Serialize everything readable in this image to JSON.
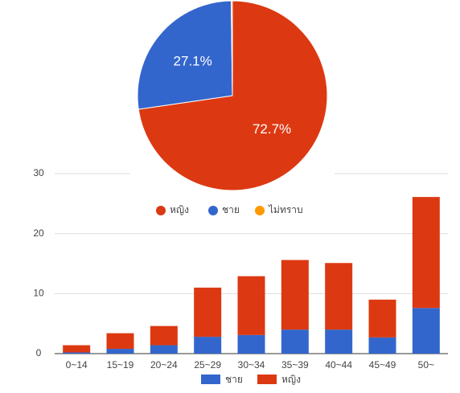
{
  "chart_data": [
    {
      "type": "pie",
      "series": [
        {
          "name": "หญิง",
          "color": "#dc3912",
          "values": [
            72.7
          ],
          "value_labels": [
            "72.7%"
          ]
        },
        {
          "name": "ชาย",
          "color": "#3366cc",
          "values": [
            27.1
          ],
          "value_labels": [
            "27.1%"
          ]
        },
        {
          "name": "ไม่ทราบ",
          "color": "#ff9900",
          "values": [
            0.2
          ]
        }
      ]
    },
    {
      "type": "stacked_bar",
      "categories": [
        "0~14",
        "15~19",
        "20~24",
        "25~29",
        "30~34",
        "35~39",
        "40~44",
        "45~49",
        "50~"
      ],
      "series": [
        {
          "name": "ชาย",
          "color": "#3366cc",
          "values": [
            0.2,
            0.8,
            1.4,
            2.8,
            3.1,
            4,
            4,
            2.7,
            7.6
          ]
        },
        {
          "name": "หญิง",
          "color": "#dc3912",
          "values": [
            1.2,
            2.6,
            3.2,
            8.2,
            9.8,
            11.6,
            11.1,
            6.3,
            18.5
          ]
        }
      ],
      "ylim": [
        0,
        30
      ],
      "yticks": [
        0,
        10,
        20,
        30
      ],
      "grid": true,
      "legend": "bottom"
    }
  ]
}
